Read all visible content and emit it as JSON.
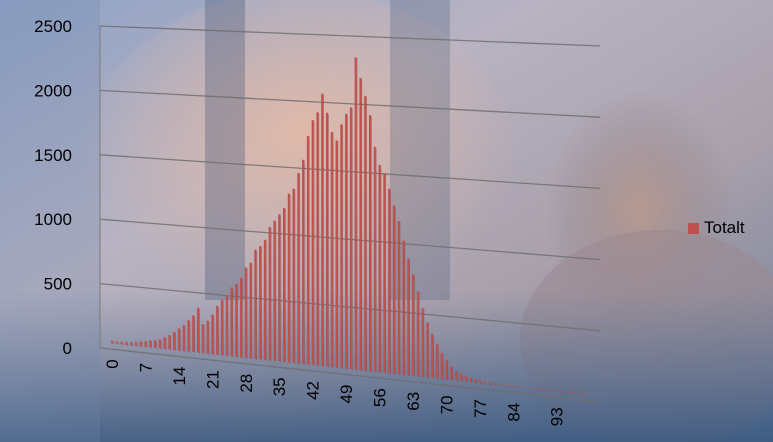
{
  "chart_data": {
    "type": "bar",
    "title": "",
    "xlabel": "",
    "ylabel": "",
    "ylim": [
      0,
      2500
    ],
    "y_ticks": [
      "0",
      "500",
      "1000",
      "1500",
      "2000",
      "2500"
    ],
    "x_tick_labels": [
      "0",
      "7",
      "14",
      "21",
      "28",
      "35",
      "42",
      "49",
      "56",
      "63",
      "70",
      "77",
      "84",
      "93"
    ],
    "grid": true,
    "legend_position": "right",
    "series": [
      {
        "name": "Totalt",
        "color": "#c0504d",
        "x": [
          0,
          1,
          2,
          3,
          4,
          5,
          6,
          7,
          8,
          9,
          10,
          11,
          12,
          13,
          14,
          15,
          16,
          17,
          18,
          19,
          20,
          21,
          22,
          23,
          24,
          25,
          26,
          27,
          28,
          29,
          30,
          31,
          32,
          33,
          34,
          35,
          36,
          37,
          38,
          39,
          40,
          41,
          42,
          43,
          44,
          45,
          46,
          47,
          48,
          49,
          50,
          51,
          52,
          53,
          54,
          55,
          56,
          57,
          58,
          59,
          60,
          61,
          62,
          63,
          64,
          65,
          66,
          67,
          68,
          69,
          70,
          71,
          72,
          73,
          74,
          75,
          76,
          77,
          78,
          79,
          80,
          81,
          82,
          83,
          84,
          85,
          86,
          87,
          88,
          89,
          90,
          91,
          92,
          93,
          94,
          95,
          96,
          97,
          98,
          99
        ],
        "values": [
          20,
          20,
          20,
          25,
          25,
          30,
          40,
          45,
          55,
          60,
          70,
          90,
          110,
          140,
          170,
          200,
          240,
          280,
          340,
          220,
          250,
          300,
          370,
          420,
          450,
          520,
          550,
          600,
          680,
          720,
          820,
          850,
          900,
          1000,
          1050,
          1100,
          1150,
          1260,
          1300,
          1420,
          1520,
          1700,
          1820,
          1880,
          2020,
          1880,
          1740,
          1680,
          1800,
          1880,
          1930,
          2300,
          2150,
          2020,
          1880,
          1650,
          1520,
          1460,
          1350,
          1230,
          1120,
          980,
          850,
          740,
          620,
          500,
          400,
          320,
          250,
          190,
          140,
          100,
          70,
          55,
          40,
          30,
          25,
          20,
          15,
          12,
          10,
          8,
          7,
          6,
          5,
          5,
          4,
          4,
          3,
          3,
          3,
          2,
          2,
          2,
          2,
          2,
          2,
          2,
          2,
          2
        ]
      }
    ]
  }
}
